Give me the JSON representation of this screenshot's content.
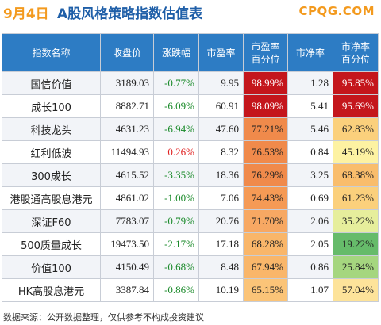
{
  "header": {
    "date": "9月4日",
    "title": "A股风格策略指数估值表",
    "logo": "CPQG.COM"
  },
  "columns": {
    "name": "指数名称",
    "close": "收盘价",
    "change": "涨跌幅",
    "pe": "市盈率",
    "pe_pct_line1": "市盈率",
    "pe_pct_line2": "百分位",
    "pb": "市净率",
    "pb_pct_line1": "市净率",
    "pb_pct_line2": "百分位"
  },
  "rows": [
    {
      "name": "国信价值",
      "close": "3189.03",
      "change": "-0.77%",
      "change_dir": "down",
      "pe": "9.95",
      "pe_pct": "98.99%",
      "pe_color": "#c4161c",
      "pe_text": "#ffffff",
      "pb": "1.28",
      "pb_pct": "95.85%",
      "pb_color": "#c4161c",
      "pb_text": "#ffffff"
    },
    {
      "name": "成长100",
      "close": "8882.71",
      "change": "-6.09%",
      "change_dir": "down",
      "pe": "60.91",
      "pe_pct": "98.09%",
      "pe_color": "#c4161c",
      "pe_text": "#ffffff",
      "pb": "5.41",
      "pb_pct": "95.69%",
      "pb_color": "#c4161c",
      "pb_text": "#ffffff"
    },
    {
      "name": "科技龙头",
      "close": "4631.23",
      "change": "-6.94%",
      "change_dir": "down",
      "pe": "47.60",
      "pe_pct": "77.21%",
      "pe_color": "#f08a4b",
      "pe_text": "#222222",
      "pb": "5.46",
      "pb_pct": "62.83%",
      "pb_color": "#fbd07c",
      "pb_text": "#222222"
    },
    {
      "name": "红利低波",
      "close": "11494.93",
      "change": "0.26%",
      "change_dir": "up",
      "pe": "8.32",
      "pe_pct": "76.53%",
      "pe_color": "#f08a4b",
      "pe_text": "#222222",
      "pb": "0.84",
      "pb_pct": "45.19%",
      "pb_color": "#fdf2a2",
      "pb_text": "#222222"
    },
    {
      "name": "300成长",
      "close": "4615.52",
      "change": "-3.35%",
      "change_dir": "down",
      "pe": "18.36",
      "pe_pct": "76.29%",
      "pe_color": "#f08a4b",
      "pe_text": "#222222",
      "pb": "3.25",
      "pb_pct": "68.38%",
      "pb_color": "#f9bd6c",
      "pb_text": "#222222"
    },
    {
      "name": "港股通高股息港元",
      "close": "4861.02",
      "change": "-1.00%",
      "change_dir": "down",
      "pe": "7.06",
      "pe_pct": "74.43%",
      "pe_color": "#f59a55",
      "pe_text": "#222222",
      "pb": "0.69",
      "pb_pct": "61.23%",
      "pb_color": "#fbd07c",
      "pb_text": "#222222"
    },
    {
      "name": "深证F60",
      "close": "7783.07",
      "change": "-0.79%",
      "change_dir": "down",
      "pe": "20.76",
      "pe_pct": "71.70%",
      "pe_color": "#f7a863",
      "pe_text": "#222222",
      "pb": "2.06",
      "pb_pct": "35.22%",
      "pb_color": "#e6ee9c",
      "pb_text": "#222222"
    },
    {
      "name": "500质量成长",
      "close": "19473.50",
      "change": "-2.17%",
      "change_dir": "down",
      "pe": "17.18",
      "pe_pct": "68.28%",
      "pe_color": "#f9b66a",
      "pe_text": "#222222",
      "pb": "2.05",
      "pb_pct": "19.22%",
      "pb_color": "#66bb6a",
      "pb_text": "#222222"
    },
    {
      "name": "价值100",
      "close": "4150.49",
      "change": "-0.68%",
      "change_dir": "down",
      "pe": "8.48",
      "pe_pct": "67.94%",
      "pe_color": "#f9b66a",
      "pe_text": "#222222",
      "pb": "0.86",
      "pb_pct": "25.84%",
      "pb_color": "#a5d67f",
      "pb_text": "#222222"
    },
    {
      "name": "HK高股息港元",
      "close": "3387.84",
      "change": "-0.86%",
      "change_dir": "down",
      "pe": "10.19",
      "pe_pct": "65.15%",
      "pe_color": "#fbc478",
      "pe_text": "#222222",
      "pb": "1.07",
      "pb_pct": "57.04%",
      "pb_color": "#fde39a",
      "pb_text": "#222222"
    }
  ],
  "footer": "数据来源：公开数据整理，仅供参考不构成投资建议",
  "colors": {
    "header_bg": "#2d7cc4",
    "title_date": "#f39a1e",
    "title_main": "#1f5fa8",
    "logo": "#f39a1e",
    "down": "#1a8a2a",
    "up": "#e02020"
  }
}
